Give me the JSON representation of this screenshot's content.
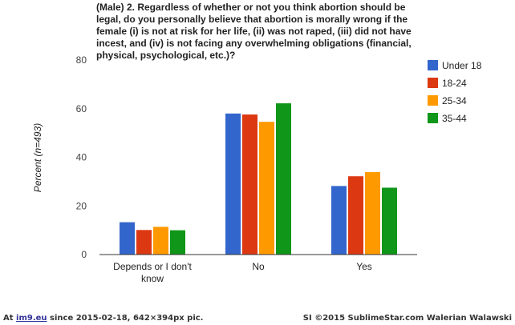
{
  "chart_data": {
    "type": "bar",
    "title_lines": [
      "(Male) 2. Regardless of whether or not you think abortion should be",
      "legal, do you personally believe that abortion is morally wrong if the",
      "female (i) is not at risk for her life, (ii) was not raped, (iii) did not have",
      "incest, and (iv) is not facing any overwhelming obligations (financial,",
      "physical, psychological, etc.)?"
    ],
    "ylabel": "Percent (n=493)",
    "xlabel": "",
    "ylim": [
      0,
      80
    ],
    "yticks": [
      0,
      20,
      40,
      60,
      80
    ],
    "categories": [
      {
        "lines": [
          "Depends or I don't",
          "know"
        ]
      },
      {
        "lines": [
          "No"
        ]
      },
      {
        "lines": [
          "Yes"
        ]
      }
    ],
    "series": [
      {
        "name": "Under 18",
        "color": "#3366cc",
        "values": [
          13.3,
          58.0,
          28.2
        ]
      },
      {
        "name": "18-24",
        "color": "#dc3912",
        "values": [
          10.1,
          57.6,
          32.2
        ]
      },
      {
        "name": "25-34",
        "color": "#ff9900",
        "values": [
          11.4,
          54.6,
          33.9
        ]
      },
      {
        "name": "35-44",
        "color": "#109618",
        "values": [
          10.0,
          62.2,
          27.5
        ]
      }
    ],
    "grid": false,
    "legend_position": "right"
  },
  "footer": {
    "left_prefix": "At ",
    "left_link": "im9.eu",
    "left_suffix": " since 2015-02-18, 642×394px pic.",
    "right": "SI ©2015 SublimeStar.com Walerian Walawski"
  }
}
